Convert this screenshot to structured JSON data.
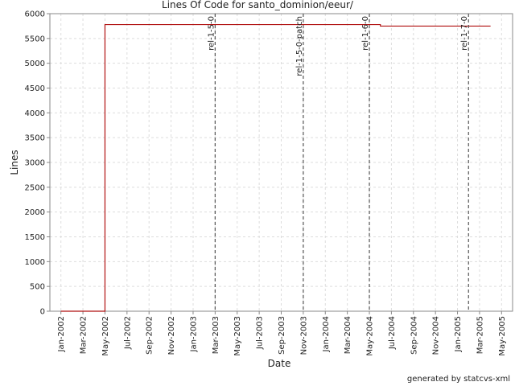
{
  "chart_data": {
    "type": "line",
    "step": true,
    "title": "Lines Of Code for santo_dominion/eeur/",
    "xlabel": "Date",
    "ylabel": "Lines",
    "footer": "generated by statcvs-xml",
    "x": [
      "2002-01",
      "2002-05",
      "2004-06",
      "2005-04"
    ],
    "values": [
      0,
      5780,
      5750,
      5750
    ],
    "color": "#b01010",
    "xlim": [
      "2001-12",
      "2005-06"
    ],
    "xticks": [
      {
        "value": "2002-01",
        "label": "Jan-2002"
      },
      {
        "value": "2002-03",
        "label": "Mar-2002"
      },
      {
        "value": "2002-05",
        "label": "May-2002"
      },
      {
        "value": "2002-07",
        "label": "Jul-2002"
      },
      {
        "value": "2002-09",
        "label": "Sep-2002"
      },
      {
        "value": "2002-11",
        "label": "Nov-2002"
      },
      {
        "value": "2003-01",
        "label": "Jan-2003"
      },
      {
        "value": "2003-03",
        "label": "Mar-2003"
      },
      {
        "value": "2003-05",
        "label": "May-2003"
      },
      {
        "value": "2003-07",
        "label": "Jul-2003"
      },
      {
        "value": "2003-09",
        "label": "Sep-2003"
      },
      {
        "value": "2003-11",
        "label": "Nov-2003"
      },
      {
        "value": "2004-01",
        "label": "Jan-2004"
      },
      {
        "value": "2004-03",
        "label": "Mar-2004"
      },
      {
        "value": "2004-05",
        "label": "May-2004"
      },
      {
        "value": "2004-07",
        "label": "Jul-2004"
      },
      {
        "value": "2004-09",
        "label": "Sep-2004"
      },
      {
        "value": "2004-11",
        "label": "Nov-2004"
      },
      {
        "value": "2005-01",
        "label": "Jan-2005"
      },
      {
        "value": "2005-03",
        "label": "Mar-2005"
      },
      {
        "value": "2005-05",
        "label": "May-2005"
      }
    ],
    "ylim": [
      0,
      6000
    ],
    "yticks": [
      0,
      500,
      1000,
      1500,
      2000,
      2500,
      3000,
      3500,
      4000,
      4500,
      5000,
      5500,
      6000
    ],
    "grid": true,
    "annotations": [
      {
        "x": "2003-03",
        "label": "rel-1-5-0"
      },
      {
        "x": "2003-11",
        "label": "rel-1-5-0-patch"
      },
      {
        "x": "2004-05",
        "label": "rel-1-6-0"
      },
      {
        "x": "2005-02",
        "label": "rel-1-7-0"
      }
    ]
  }
}
